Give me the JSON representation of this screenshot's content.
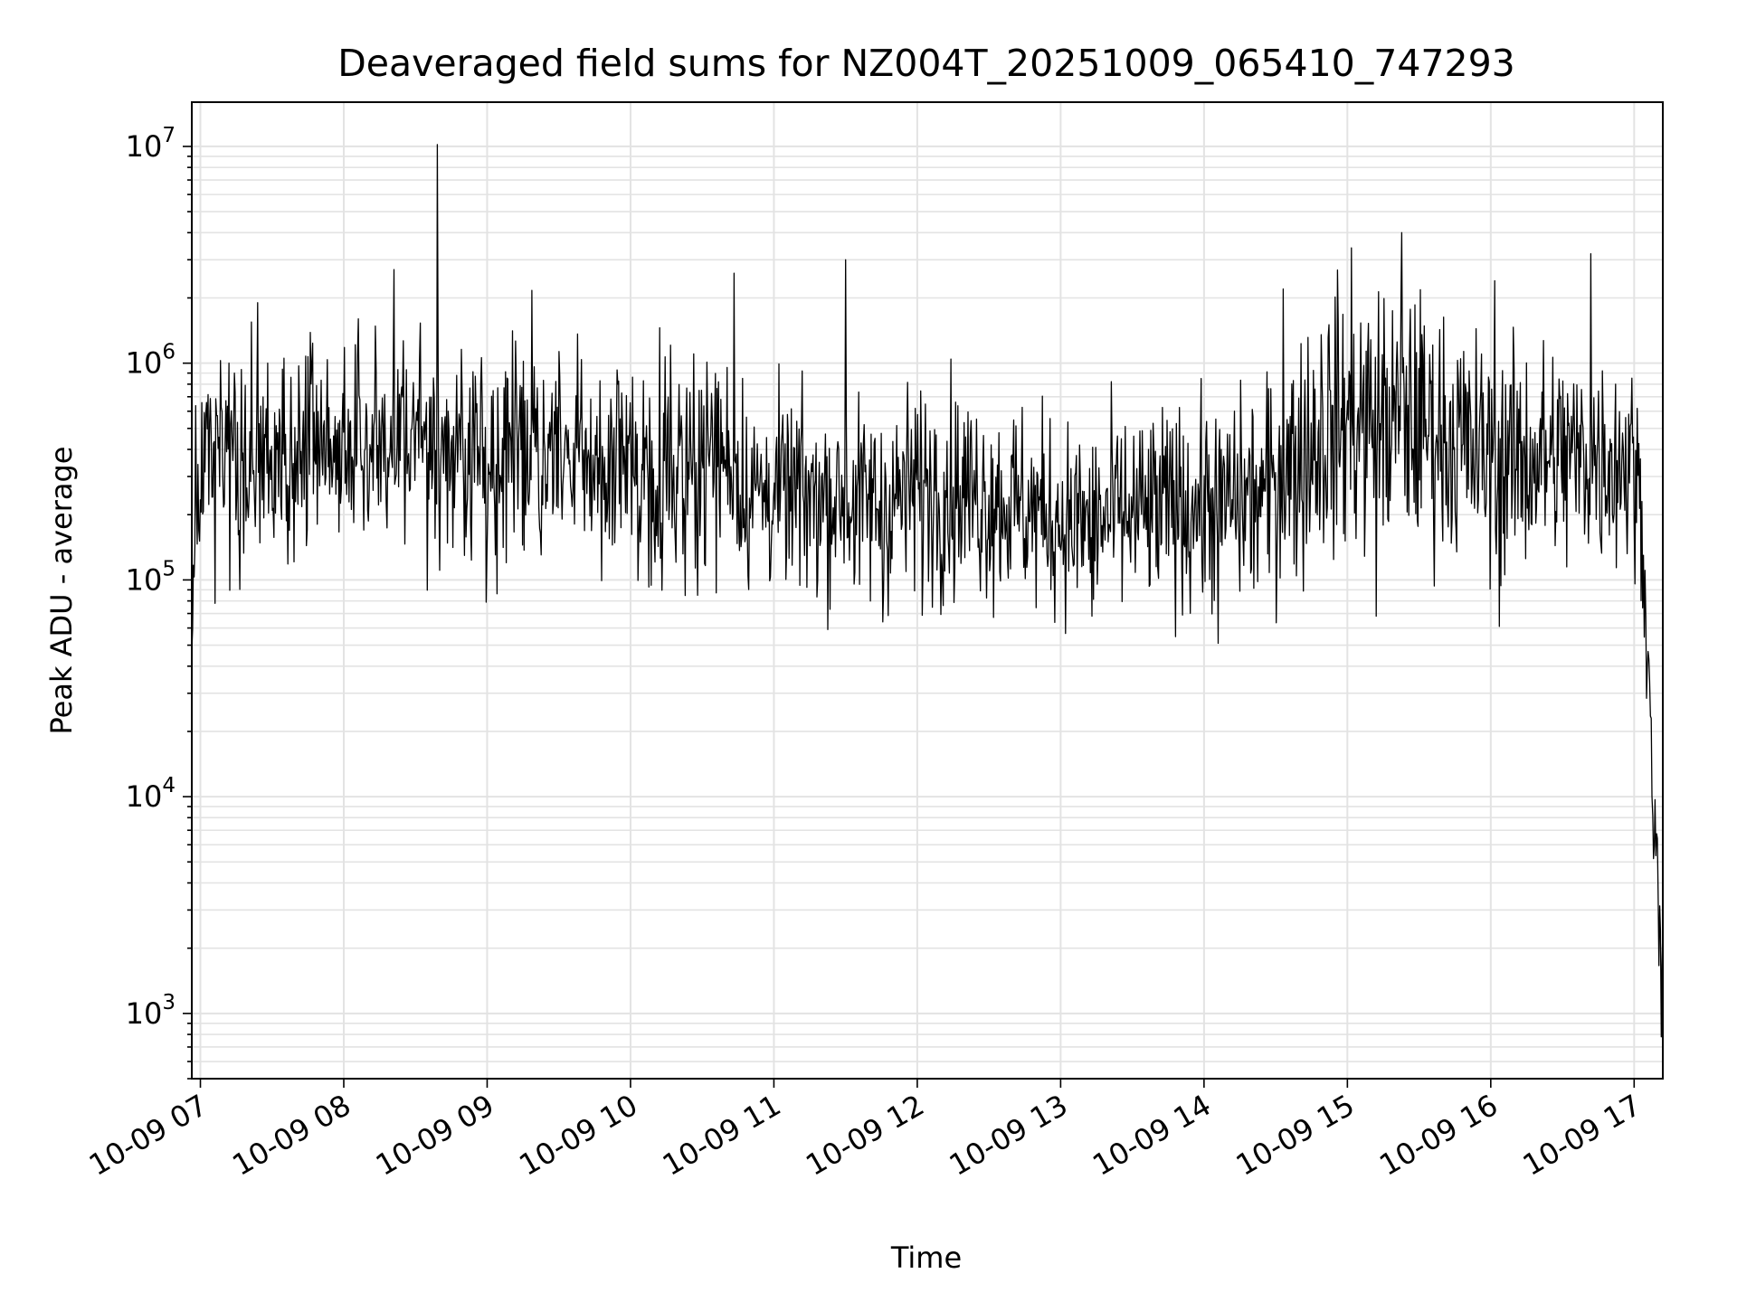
{
  "chart_data": {
    "type": "line",
    "title": "Deaveraged field sums for NZ004T_20251009_065410_747293",
    "xlabel": "Time",
    "ylabel": "Peak ADU - average",
    "yscale": "log",
    "ylim": [
      500,
      16000000
    ],
    "xlim_hours": [
      6.94,
      17.2
    ],
    "grid": true,
    "legend": "none",
    "line_color": "#000000",
    "grid_color": "#e3e3e3",
    "x_ticks": [
      {
        "label": "10-09 07",
        "hour": 7
      },
      {
        "label": "10-09 08",
        "hour": 8
      },
      {
        "label": "10-09 09",
        "hour": 9
      },
      {
        "label": "10-09 10",
        "hour": 10
      },
      {
        "label": "10-09 11",
        "hour": 11
      },
      {
        "label": "10-09 12",
        "hour": 12
      },
      {
        "label": "10-09 13",
        "hour": 13
      },
      {
        "label": "10-09 14",
        "hour": 14
      },
      {
        "label": "10-09 15",
        "hour": 15
      },
      {
        "label": "10-09 16",
        "hour": 16
      },
      {
        "label": "10-09 17",
        "hour": 17
      }
    ],
    "y_ticks": [
      {
        "base": "10",
        "exp": "3",
        "value": 1000
      },
      {
        "base": "10",
        "exp": "4",
        "value": 10000
      },
      {
        "base": "10",
        "exp": "5",
        "value": 100000
      },
      {
        "base": "10",
        "exp": "6",
        "value": 1000000
      },
      {
        "base": "10",
        "exp": "7",
        "value": 10000000
      }
    ],
    "series": [
      {
        "name": "deaveraged field sums",
        "x_hours": [
          6.94,
          6.96,
          6.98,
          7.0,
          7.2,
          7.4,
          7.6,
          7.8,
          8.0,
          8.2,
          8.4,
          8.6,
          8.8,
          9.0,
          9.2,
          9.4,
          9.6,
          9.8,
          10.0,
          10.2,
          10.4,
          10.6,
          10.7,
          10.8,
          11.0,
          11.2,
          11.4,
          11.6,
          11.8,
          12.0,
          12.2,
          12.4,
          12.6,
          12.8,
          13.0,
          13.2,
          13.4,
          13.6,
          13.8,
          14.0,
          14.2,
          14.4,
          14.6,
          14.8,
          15.0,
          15.2,
          15.4,
          15.6,
          15.8,
          16.0,
          16.2,
          16.4,
          16.6,
          16.8,
          17.0,
          17.05,
          17.1,
          17.15,
          17.18,
          17.2
        ],
        "median": [
          40000,
          150000,
          300000,
          350000,
          330000,
          330000,
          320000,
          420000,
          400000,
          430000,
          470000,
          440000,
          400000,
          380000,
          390000,
          380000,
          360000,
          330000,
          320000,
          330000,
          350000,
          380000,
          360000,
          260000,
          250000,
          240000,
          240000,
          220000,
          230000,
          260000,
          270000,
          250000,
          230000,
          210000,
          190000,
          180000,
          200000,
          200000,
          220000,
          220000,
          230000,
          240000,
          330000,
          480000,
          550000,
          520000,
          560000,
          500000,
          420000,
          360000,
          360000,
          370000,
          360000,
          370000,
          350000,
          200000,
          40000,
          5000,
          2500,
          1800
        ],
        "spread_dex": [
          0.2,
          0.3,
          0.4,
          0.45,
          0.45,
          0.45,
          0.45,
          0.45,
          0.45,
          0.45,
          0.5,
          0.45,
          0.45,
          0.45,
          0.45,
          0.45,
          0.45,
          0.45,
          0.45,
          0.45,
          0.45,
          0.45,
          0.45,
          0.4,
          0.4,
          0.4,
          0.4,
          0.42,
          0.42,
          0.45,
          0.45,
          0.42,
          0.42,
          0.42,
          0.4,
          0.4,
          0.42,
          0.42,
          0.42,
          0.42,
          0.42,
          0.45,
          0.5,
          0.55,
          0.55,
          0.55,
          0.55,
          0.5,
          0.5,
          0.48,
          0.48,
          0.48,
          0.48,
          0.45,
          0.45,
          0.3,
          0.2,
          0.3,
          0.3,
          0.2
        ],
        "peaks": [
          {
            "hour": 7.2,
            "value": 1000000
          },
          {
            "hour": 7.4,
            "value": 1900000
          },
          {
            "hour": 8.1,
            "value": 1600000
          },
          {
            "hour": 8.35,
            "value": 2700000
          },
          {
            "hour": 8.65,
            "value": 10200000
          },
          {
            "hour": 10.72,
            "value": 2600000
          },
          {
            "hour": 11.5,
            "value": 3000000
          },
          {
            "hour": 14.55,
            "value": 2200000
          },
          {
            "hour": 15.03,
            "value": 3400000
          },
          {
            "hour": 15.38,
            "value": 4000000
          },
          {
            "hour": 16.03,
            "value": 2400000
          },
          {
            "hour": 16.7,
            "value": 3200000
          }
        ],
        "dips": [
          {
            "hour": 7.1,
            "value": 78000
          },
          {
            "hour": 11.76,
            "value": 64000
          },
          {
            "hour": 13.22,
            "value": 68000
          },
          {
            "hour": 14.1,
            "value": 51000
          },
          {
            "hour": 15.2,
            "value": 68000
          },
          {
            "hour": 16.06,
            "value": 61000
          },
          {
            "hour": 17.19,
            "value": 780
          }
        ]
      }
    ]
  }
}
